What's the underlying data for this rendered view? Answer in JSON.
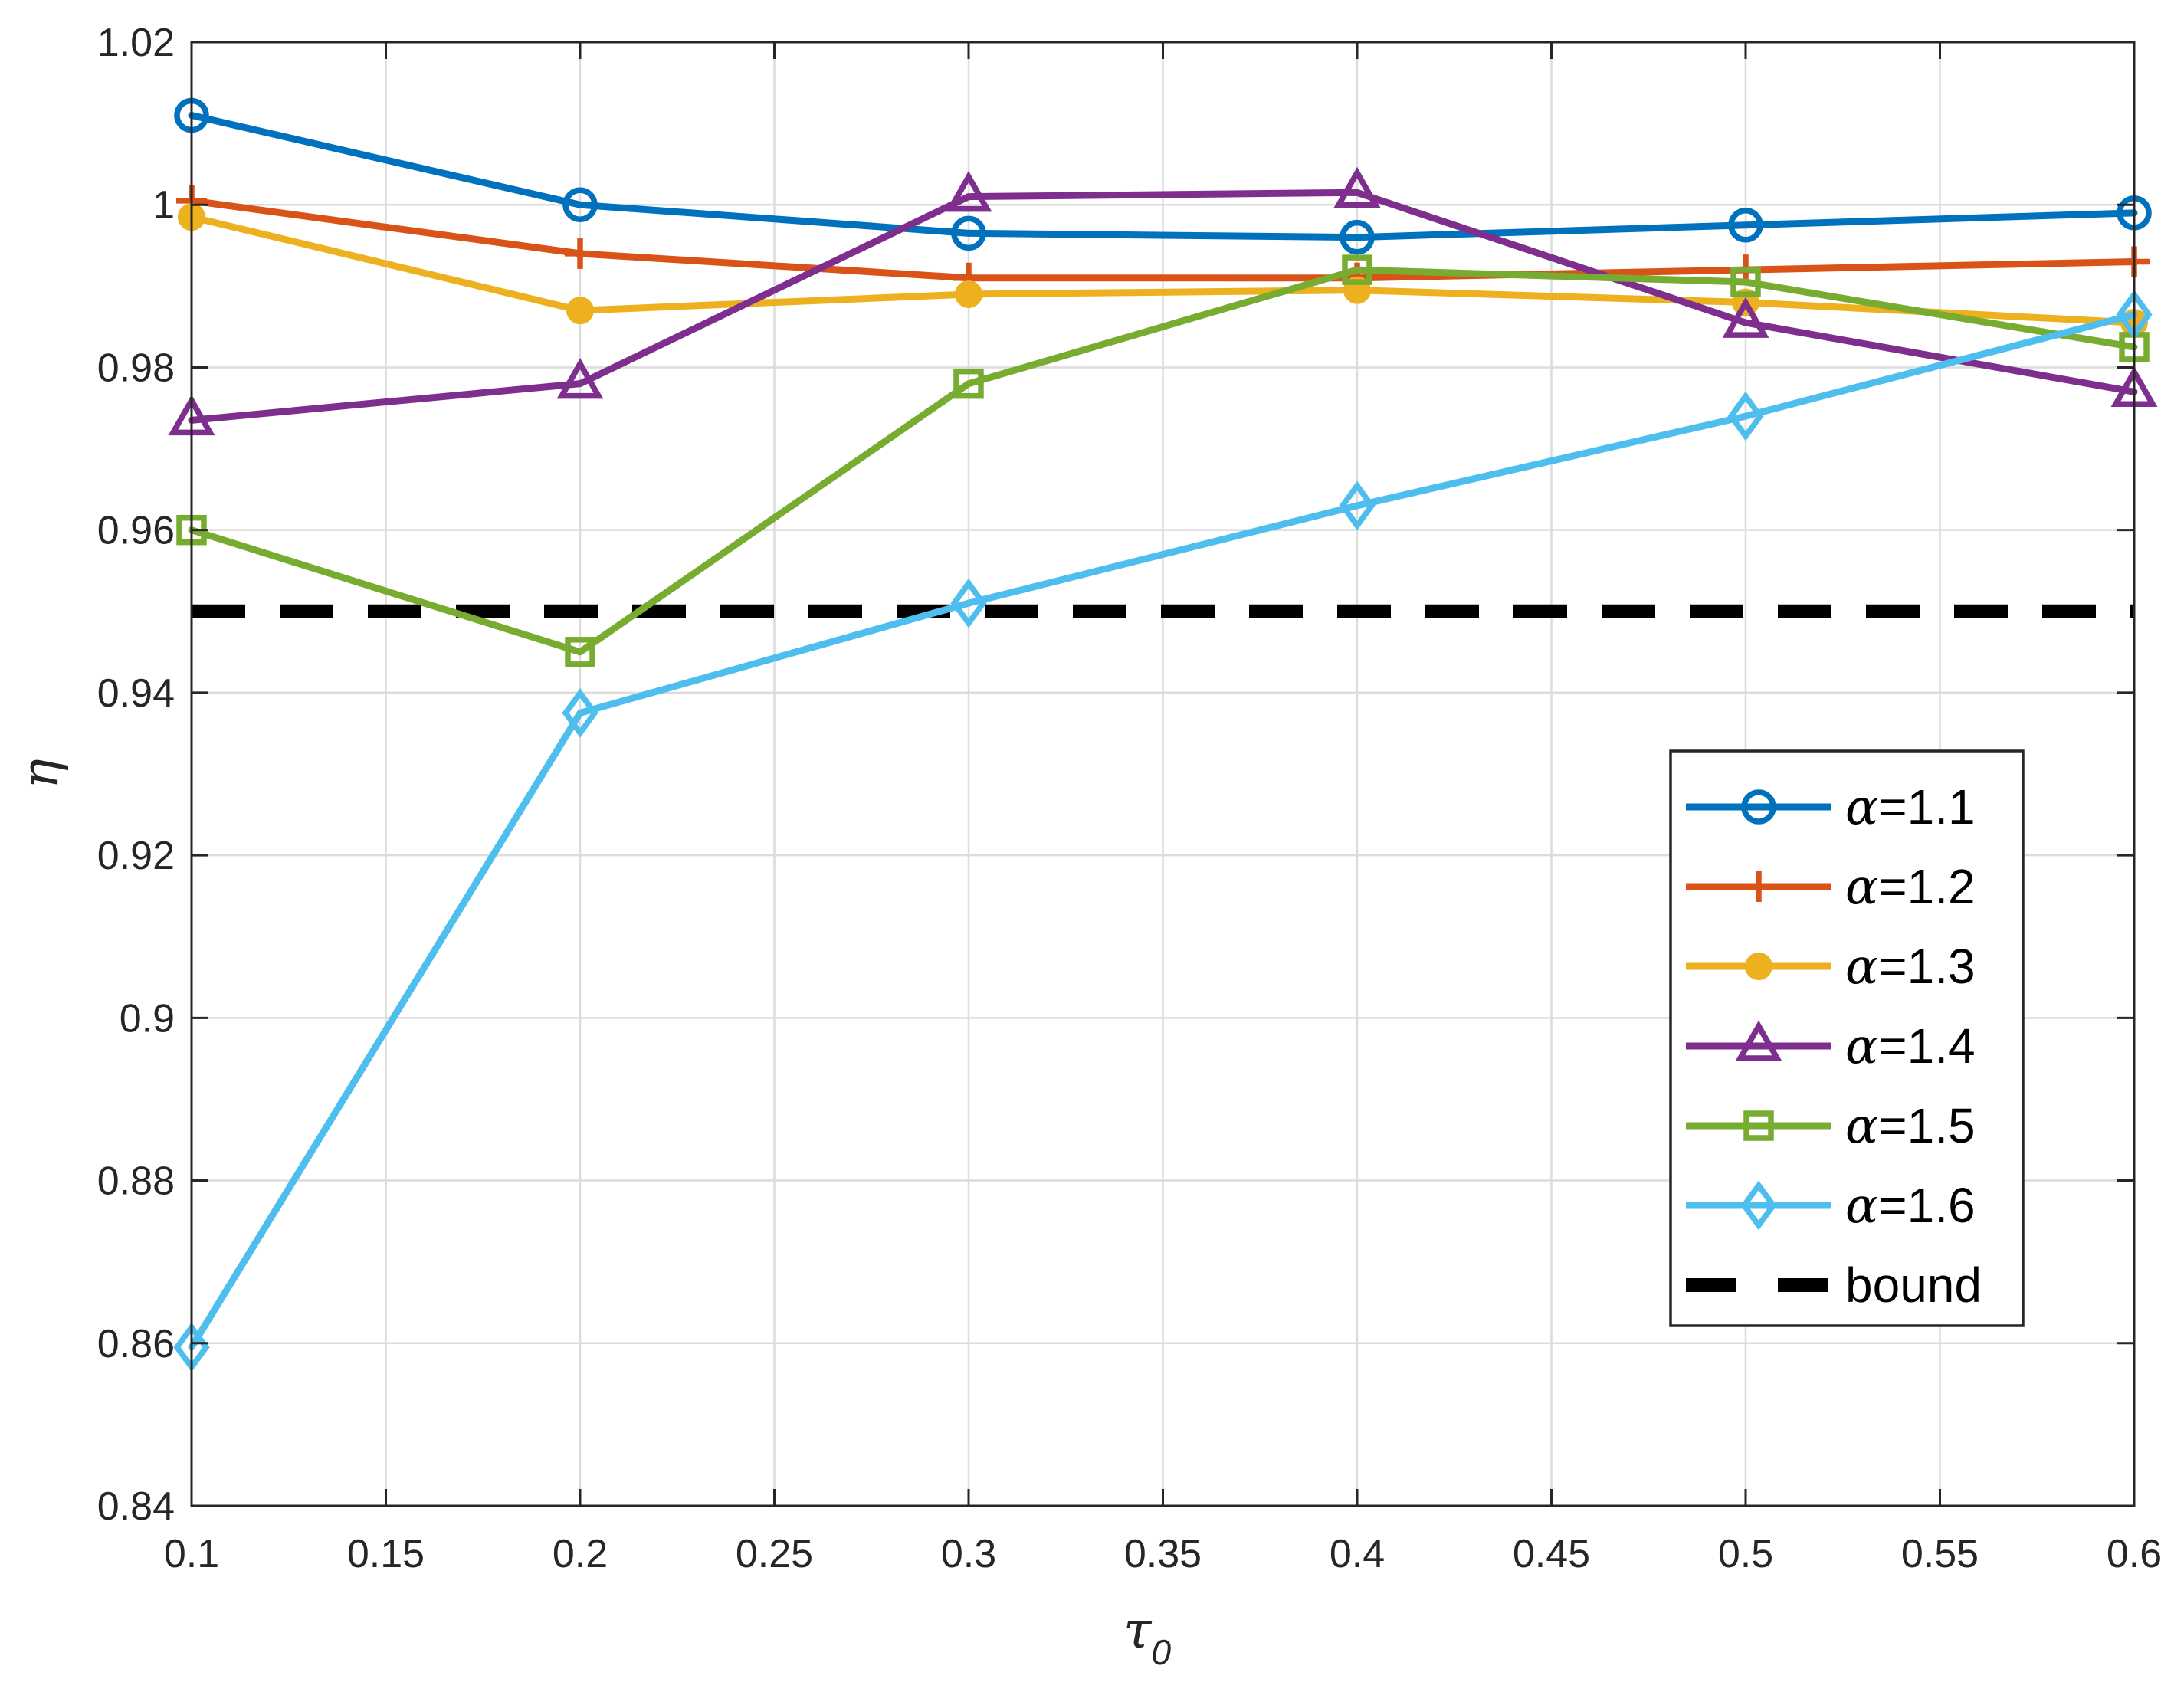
{
  "chart_data": {
    "type": "line",
    "xlabel": "τ",
    "xlabel_subscript": "0",
    "ylabel": "η",
    "xlim": [
      0.1,
      0.6
    ],
    "ylim": [
      0.84,
      1.02
    ],
    "xticks": [
      0.1,
      0.15,
      0.2,
      0.25,
      0.3,
      0.35,
      0.4,
      0.45,
      0.5,
      0.55,
      0.6
    ],
    "xtick_labels": [
      "0.1",
      "0.15",
      "0.2",
      "0.25",
      "0.3",
      "0.35",
      "0.4",
      "0.45",
      "0.5",
      "0.55",
      "0.6"
    ],
    "yticks": [
      0.84,
      0.86,
      0.88,
      0.9,
      0.92,
      0.94,
      0.96,
      0.98,
      1.0,
      1.02
    ],
    "ytick_labels": [
      "0.84",
      "0.86",
      "0.88",
      "0.9",
      "0.92",
      "0.94",
      "0.96",
      "0.98",
      "1",
      "1.02"
    ],
    "grid": true,
    "legend_position": "right-center",
    "x": [
      0.1,
      0.2,
      0.3,
      0.4,
      0.5,
      0.6
    ],
    "series": [
      {
        "name": "α=1.1",
        "symbol": "α",
        "label_value": "=1.1",
        "color": "#0072BD",
        "marker": "circle-open",
        "values": [
          1.011,
          1.0,
          0.9965,
          0.996,
          0.9975,
          0.999
        ]
      },
      {
        "name": "α=1.2",
        "symbol": "α",
        "label_value": "=1.2",
        "color": "#D95319",
        "marker": "plus",
        "values": [
          1.0005,
          0.994,
          0.991,
          0.991,
          0.992,
          0.993
        ]
      },
      {
        "name": "α=1.3",
        "symbol": "α",
        "label_value": "=1.3",
        "color": "#EDB120",
        "marker": "circle-filled",
        "values": [
          0.9985,
          0.987,
          0.989,
          0.9895,
          0.988,
          0.9855
        ]
      },
      {
        "name": "α=1.4",
        "symbol": "α",
        "label_value": "=1.4",
        "color": "#7E2F8E",
        "marker": "triangle",
        "values": [
          0.9735,
          0.978,
          1.001,
          1.0015,
          0.9855,
          0.977
        ]
      },
      {
        "name": "α=1.5",
        "symbol": "α",
        "label_value": "=1.5",
        "color": "#77AC30",
        "marker": "square",
        "values": [
          0.96,
          0.945,
          0.978,
          0.992,
          0.9905,
          0.9825
        ]
      },
      {
        "name": "α=1.6",
        "symbol": "α",
        "label_value": "=1.6",
        "color": "#4DBEEE",
        "marker": "diamond",
        "values": [
          0.8595,
          0.9375,
          0.951,
          0.963,
          0.974,
          0.9865
        ]
      }
    ],
    "reference_line": {
      "name": "bound",
      "value": 0.95,
      "color": "#000000",
      "style": "dashed"
    }
  }
}
